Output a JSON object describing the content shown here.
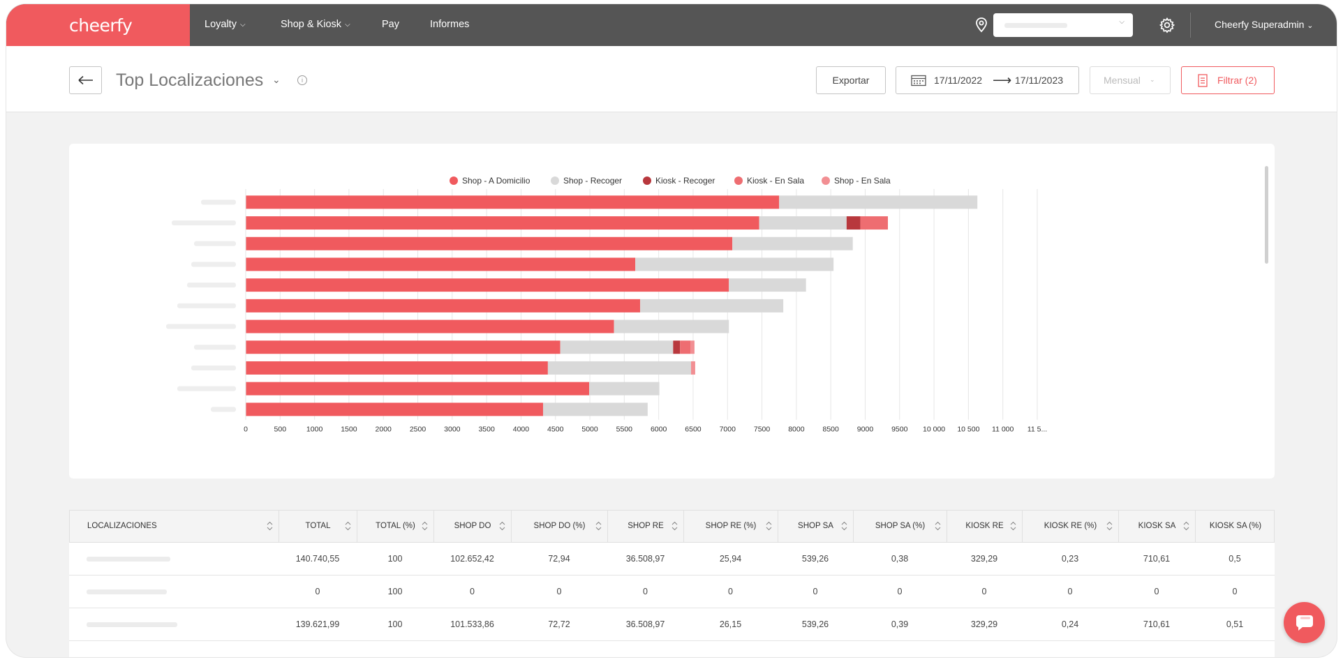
{
  "app": {
    "logo": "cheerfy"
  },
  "nav": {
    "items": [
      {
        "label": "Loyalty",
        "has_dropdown": true
      },
      {
        "label": "Shop & Kiosk",
        "has_dropdown": true
      },
      {
        "label": "Pay",
        "has_dropdown": false
      },
      {
        "label": "Informes",
        "has_dropdown": false
      }
    ],
    "location_icon": "location-pin-icon",
    "settings_icon": "gear-icon",
    "user": "Cheerfy Superadmin",
    "user_chevron": "⌄"
  },
  "header": {
    "back_icon": "arrow-left-icon",
    "title": "Top Localizaciones",
    "title_chevron": "⌄",
    "info_icon": "ⓘ",
    "export_label": "Exportar",
    "date_from": "17/11/2022",
    "date_arrow": "⟶",
    "date_to": "17/11/2023",
    "period_label": "Mensual",
    "period_chevron": "⌄",
    "filter_label": "Filtrar (2)"
  },
  "colors": {
    "brand": "#f05a5e",
    "shop_domicilio": "#f05a5e",
    "shop_recoger": "#d9d9d9",
    "kiosk_recoger": "#b8383d",
    "kiosk_sala": "#ee6d71",
    "shop_sala": "#f28f93"
  },
  "chart_data": {
    "type": "bar",
    "orientation": "horizontal",
    "stacked": true,
    "legend_position": "top",
    "categories": [
      "",
      "",
      "",
      "",
      "",
      "",
      "",
      "",
      "",
      "",
      ""
    ],
    "series": [
      {
        "name": "Shop - A Domicilio",
        "values": [
          7750,
          7460,
          7070,
          5660,
          7020,
          5730,
          5350,
          4570,
          4390,
          4990,
          4320
        ]
      },
      {
        "name": "Shop - Recoger",
        "values": [
          2880,
          1270,
          1750,
          2880,
          1120,
          2080,
          1670,
          1640,
          2080,
          1020,
          1520
        ]
      },
      {
        "name": "Kiosk - Recoger",
        "values": [
          0,
          200,
          0,
          0,
          0,
          0,
          0,
          100,
          0,
          0,
          0
        ]
      },
      {
        "name": "Kiosk - En Sala",
        "values": [
          0,
          400,
          0,
          0,
          0,
          0,
          0,
          150,
          0,
          0,
          0
        ]
      },
      {
        "name": "Shop - En Sala",
        "values": [
          0,
          0,
          0,
          0,
          0,
          0,
          0,
          60,
          60,
          0,
          0
        ]
      }
    ],
    "xlim": [
      0,
      11500
    ],
    "x_ticks": [
      "0",
      "500",
      "1000",
      "1500",
      "2000",
      "2500",
      "3000",
      "3500",
      "4000",
      "4500",
      "5000",
      "5500",
      "6000",
      "6500",
      "7000",
      "7500",
      "8000",
      "8500",
      "9000",
      "9500",
      "10 000",
      "10 500",
      "11 000",
      "11 5..."
    ],
    "grid": true
  },
  "table": {
    "columns": [
      "LOCALIZACIONES",
      "TOTAL",
      "TOTAL (%)",
      "SHOP DO",
      "SHOP DO (%)",
      "SHOP RE",
      "SHOP RE (%)",
      "SHOP SA",
      "SHOP SA (%)",
      "KIOSK RE",
      "KIOSK RE (%)",
      "KIOSK SA",
      "KIOSK SA (%)"
    ],
    "rows": [
      [
        "",
        "140.740,55",
        "100",
        "102.652,42",
        "72,94",
        "36.508,97",
        "25,94",
        "539,26",
        "0,38",
        "329,29",
        "0,23",
        "710,61",
        "0,5"
      ],
      [
        "",
        "0",
        "100",
        "0",
        "0",
        "0",
        "0",
        "0",
        "0",
        "0",
        "0",
        "0",
        "0"
      ],
      [
        "",
        "139.621,99",
        "100",
        "101.533,86",
        "72,72",
        "36.508,97",
        "26,15",
        "539,26",
        "0,39",
        "329,29",
        "0,24",
        "710,61",
        "0,51"
      ]
    ]
  },
  "chat": {
    "icon": "chat-bubble-icon"
  }
}
